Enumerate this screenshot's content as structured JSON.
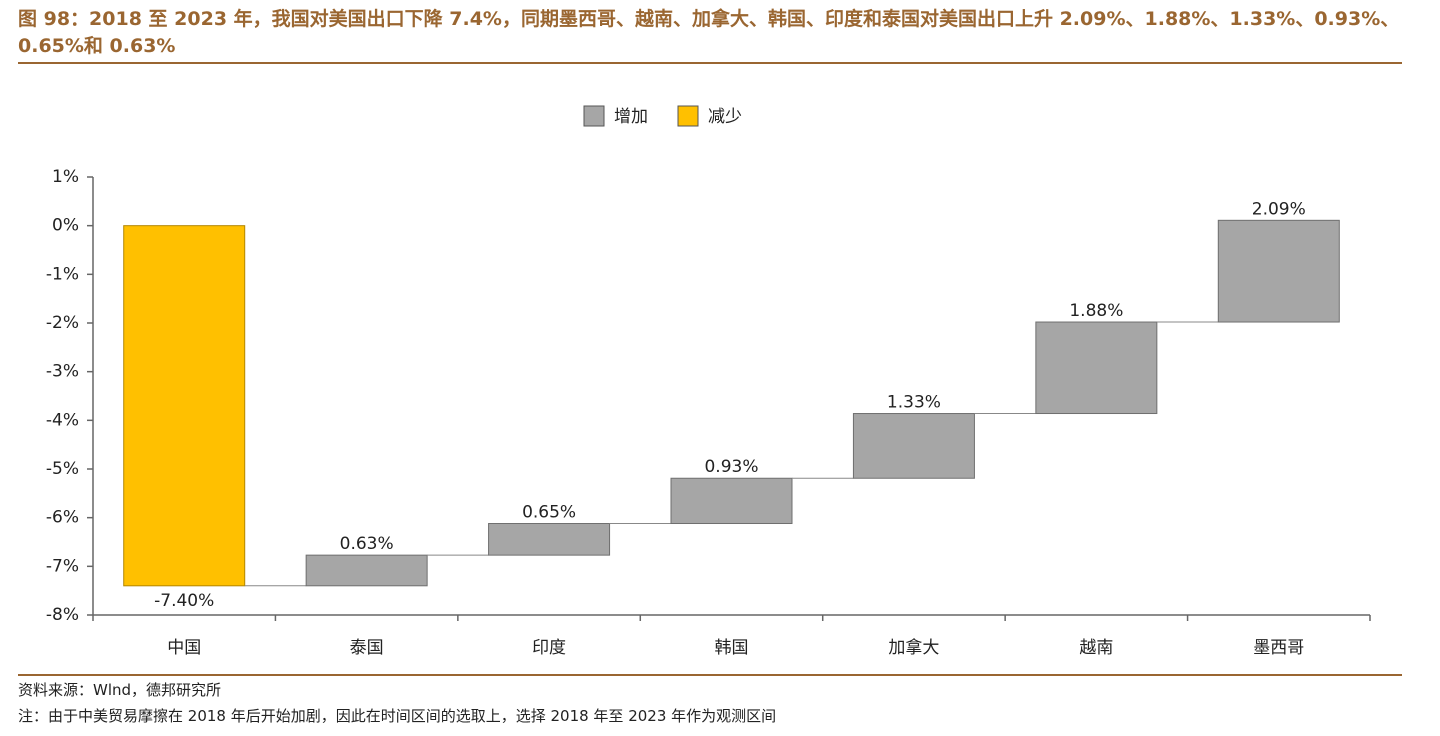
{
  "chart_data": {
    "type": "waterfall",
    "title": "图 98：2018 至 2023 年，我国对美国出口下降 7.4%，同期墨西哥、越南、加拿大、韩国、印度和泰国对美国出口上升 2.09%、1.88%、1.33%、0.93%、0.65%和 0.63%",
    "categories": [
      "中国",
      "泰国",
      "印度",
      "韩国",
      "加拿大",
      "越南",
      "墨西哥"
    ],
    "values": [
      -7.4,
      0.63,
      0.65,
      0.93,
      1.33,
      1.88,
      2.09
    ],
    "value_labels": [
      "-7.40%",
      "0.63%",
      "0.65%",
      "0.93%",
      "1.33%",
      "1.88%",
      "2.09%"
    ],
    "legend": [
      {
        "name": "增加",
        "color": "#a6a6a6"
      },
      {
        "name": "减少",
        "color": "#ffc000"
      }
    ],
    "ylim": [
      -8,
      1
    ],
    "yticks": [
      {
        "value": -8,
        "label": "-8%"
      },
      {
        "value": -7,
        "label": "-7%"
      },
      {
        "value": -6,
        "label": "-6%"
      },
      {
        "value": -5,
        "label": "-5%"
      },
      {
        "value": -4,
        "label": "-4%"
      },
      {
        "value": -3,
        "label": "-3%"
      },
      {
        "value": -2,
        "label": "-2%"
      },
      {
        "value": -1,
        "label": "-1%"
      },
      {
        "value": 0,
        "label": "0%"
      },
      {
        "value": 1,
        "label": "1%"
      }
    ],
    "grid": false
  },
  "footer": {
    "source": "资料来源：Wlnd，德邦研究所",
    "note": "注：由于中美贸易摩擦在 2018 年后开始加剧，因此在时间区间的选取上，选择 2018 年至 2023 年作为观测区间"
  }
}
